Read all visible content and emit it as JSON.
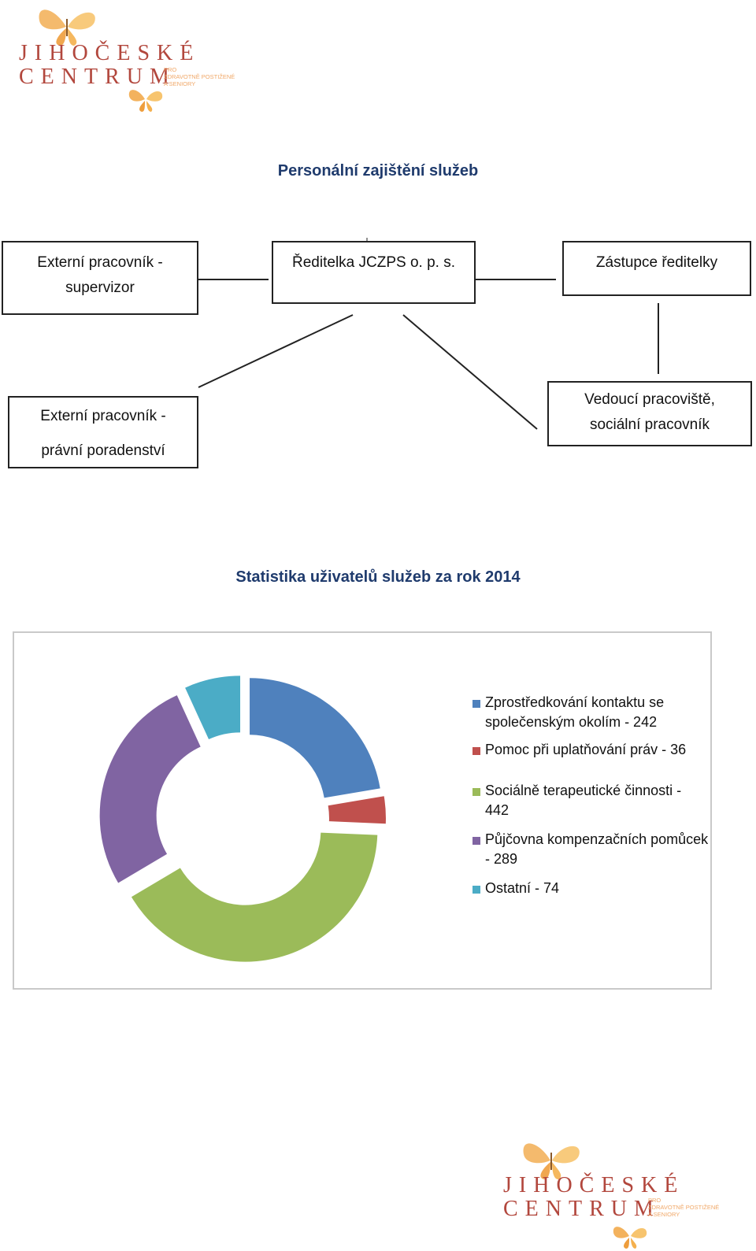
{
  "logo": {
    "line1": "JIHOČESKÉ",
    "line2": "CENTRUM",
    "tagline": [
      "PRO",
      "ZDRAVOTNĚ POSTIŽENÉ",
      "A SENIORY"
    ]
  },
  "personnel": {
    "title": "Personální zajištění služeb",
    "boxes": {
      "supervisor": [
        "Externí pracovník -",
        "supervizor"
      ],
      "director": "Ředitelka JCZPS o. p. s.",
      "deputy": "Zástupce ředitelky",
      "legal": [
        "Externí pracovník -",
        "právní poradenství"
      ],
      "manager": [
        "Vedoucí pracoviště,",
        "sociální pracovník"
      ]
    }
  },
  "statistics": {
    "title": "Statistika uživatelů služeb za rok 2014"
  },
  "chart_data": {
    "type": "pie",
    "variant": "exploded-doughnut",
    "legend_position": "right",
    "series": [
      {
        "label": "Zprostředkování kontaktu se společenským okolím - 242",
        "value": 242,
        "color": "#4f81bd"
      },
      {
        "label": "Pomoc při uplatňování práv - 36",
        "value": 36,
        "color": "#c0504d"
      },
      {
        "label": "Sociálně terapeutické činnosti - 442",
        "value": 442,
        "color": "#9bbb59"
      },
      {
        "label": "Půjčovna kompenzačních pomůcek - 289",
        "value": 289,
        "color": "#8064a2"
      },
      {
        "label": "Ostatní - 74",
        "value": 74,
        "color": "#4bacc6"
      }
    ]
  }
}
